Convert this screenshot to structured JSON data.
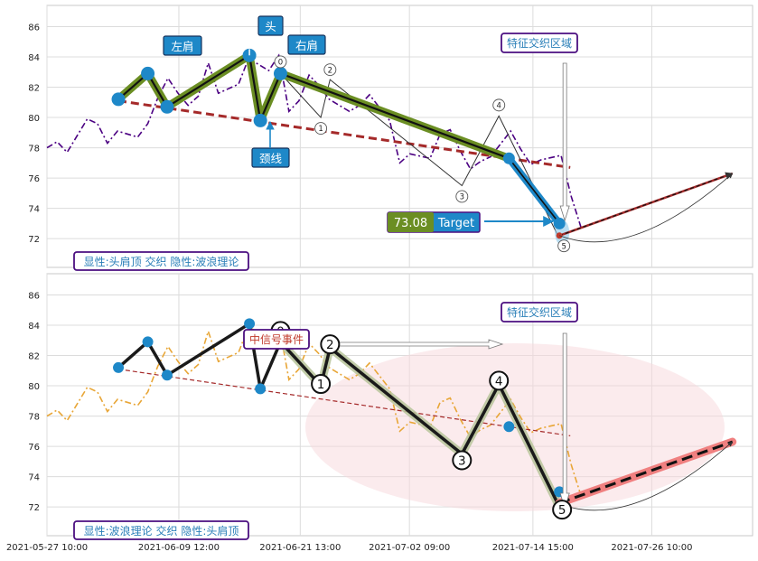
{
  "chart_data": [
    {
      "type": "line",
      "panel": "top",
      "y_ticks": [
        72,
        74,
        76,
        78,
        80,
        82,
        84,
        86
      ],
      "ylim": [
        70.1,
        87.4
      ],
      "x_range": [
        "2021-05-27 10:00",
        "2021-08-05 10:00"
      ],
      "grid": true,
      "price_series": {
        "color": "#4b0082",
        "style": "dash-dot",
        "x": [
          "2021-05-27 10:00",
          "2021-05-28 10:00",
          "2021-05-29 10:00",
          "2021-05-31 10:00",
          "2021-06-01 10:00",
          "2021-06-02 10:00",
          "2021-06-03 10:00",
          "2021-06-05 10:00",
          "2021-06-06 10:00",
          "2021-06-07 10:00",
          "2021-06-08 10:00",
          "2021-06-09 10:00",
          "2021-06-10 10:00",
          "2021-06-11 10:00",
          "2021-06-12 10:00",
          "2021-06-13 10:00",
          "2021-06-15 10:00",
          "2021-06-16 10:00",
          "2021-06-18 10:00",
          "2021-06-19 10:00",
          "2021-06-20 10:00",
          "2021-06-21 10:00",
          "2021-06-22 10:00",
          "2021-06-23 10:00",
          "2021-06-24 10:00",
          "2021-06-26 10:00",
          "2021-06-27 10:00",
          "2021-06-28 10:00",
          "2021-06-30 10:00",
          "2021-07-01 10:00",
          "2021-07-02 10:00",
          "2021-07-04 10:00",
          "2021-07-05 10:00",
          "2021-07-06 10:00",
          "2021-07-07 10:00",
          "2021-07-08 10:00",
          "2021-07-09 10:00",
          "2021-07-10 10:00",
          "2021-07-12 10:00",
          "2021-07-13 10:00",
          "2021-07-14 10:00",
          "2021-07-15 10:00",
          "2021-07-17 10:00",
          "2021-07-18 10:00",
          "2021-07-19 10:00"
        ],
        "y": [
          78.0,
          78.4,
          77.7,
          79.9,
          79.6,
          78.3,
          79.1,
          78.7,
          79.6,
          81.3,
          82.6,
          81.6,
          80.8,
          81.4,
          83.6,
          81.6,
          82.2,
          83.9,
          83.1,
          84.1,
          80.4,
          81.1,
          82.8,
          82.1,
          81.2,
          80.4,
          80.8,
          81.5,
          79.8,
          77.0,
          77.6,
          77.3,
          78.9,
          79.2,
          77.8,
          76.6,
          77.1,
          77.4,
          79.1,
          77.9,
          76.9,
          77.2,
          77.5,
          74.8,
          72.7
        ]
      },
      "pattern_points": [
        {
          "x": "2021-06-03 12:00",
          "y": 81.2
        },
        {
          "x": "2021-06-06 10:00",
          "y": 82.9
        },
        {
          "x": "2021-06-08 08:00",
          "y": 80.7
        },
        {
          "x": "2021-06-16 12:00",
          "y": 84.1
        },
        {
          "x": "2021-06-17 14:00",
          "y": 79.8
        },
        {
          "x": "2021-06-19 14:00",
          "y": 82.9
        },
        {
          "x": "2021-07-12 06:00",
          "y": 77.3
        },
        {
          "x": "2021-07-17 06:00",
          "y": 73.0
        }
      ],
      "neckline": {
        "x": [
          "2021-06-03 12:00",
          "2021-07-18 08:00"
        ],
        "y": [
          81.1,
          76.7
        ]
      },
      "wave_points": [
        {
          "label": "0",
          "x": "2021-06-19 14:00",
          "y": 82.9
        },
        {
          "label": "1",
          "x": "2021-06-23 14:00",
          "y": 80.0
        },
        {
          "label": "2",
          "x": "2021-06-24 12:00",
          "y": 82.5
        },
        {
          "label": "3",
          "x": "2021-07-07 14:00",
          "y": 75.5
        },
        {
          "label": "4",
          "x": "2021-07-11 06:00",
          "y": 80.1
        },
        {
          "label": "5",
          "x": "2021-07-17 06:00",
          "y": 72.0
        }
      ],
      "projection": {
        "x": [
          "2021-07-17 06:00",
          "2021-08-03 10:00"
        ],
        "y": [
          72.2,
          76.3
        ]
      },
      "annotations": {
        "left_shoulder": "左肩",
        "head": "头",
        "right_shoulder": "右肩",
        "neckline": "颈线",
        "zone": "特征交织区域",
        "target_value": "73.08",
        "target_label": "Target",
        "caption": "显性:头肩顶 交织 隐性:波浪理论"
      }
    },
    {
      "type": "line",
      "panel": "bottom",
      "y_ticks": [
        72,
        74,
        76,
        78,
        80,
        82,
        84,
        86
      ],
      "ylim": [
        70.1,
        87.4
      ],
      "x_ticks": [
        "2021-05-27 10:00",
        "2021-06-09 12:00",
        "2021-06-21 13:00",
        "2021-07-02 09:00",
        "2021-07-14 15:00",
        "2021-07-26 10:00"
      ],
      "grid": true,
      "price_series": {
        "color": "#e8a637",
        "style": "dash-dot"
      },
      "annotations": {
        "signal": "中信号事件",
        "zone": "特征交织区域",
        "caption": "显性:波浪理论 交织 隐性:头肩顶"
      }
    }
  ]
}
